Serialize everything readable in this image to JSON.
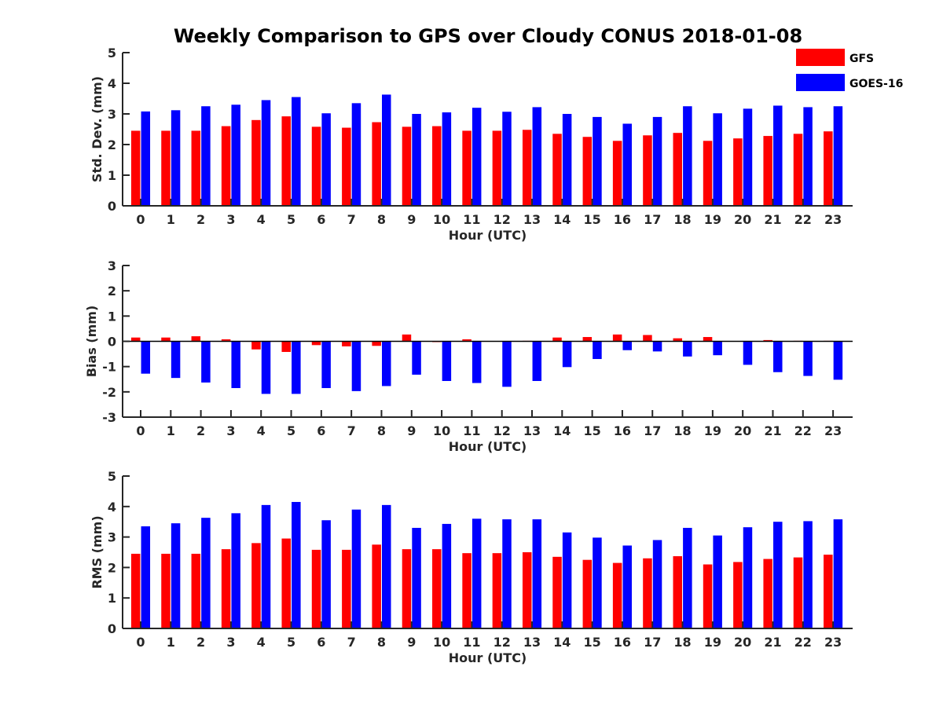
{
  "title": "Weekly Comparison to GPS over Cloudy CONUS 2018-01-08",
  "colors": {
    "GFS": "#ff0000",
    "GOES-16": "#0000ff"
  },
  "legend": {
    "placement": "top-right",
    "entries": [
      "GFS",
      "GOES-16"
    ]
  },
  "chart_data": [
    {
      "type": "bar",
      "ylabel": "Std. Dev. (mm)",
      "xlabel": "Hour (UTC)",
      "ylim": [
        0,
        5
      ],
      "yticks": [
        0,
        1,
        2,
        3,
        4,
        5
      ],
      "categories": [
        "0",
        "1",
        "2",
        "3",
        "4",
        "5",
        "6",
        "7",
        "8",
        "9",
        "10",
        "11",
        "12",
        "13",
        "14",
        "15",
        "16",
        "17",
        "18",
        "19",
        "20",
        "21",
        "22",
        "23"
      ],
      "series": [
        {
          "name": "GFS",
          "values": [
            2.45,
            2.45,
            2.45,
            2.6,
            2.8,
            2.92,
            2.58,
            2.55,
            2.73,
            2.58,
            2.6,
            2.45,
            2.45,
            2.48,
            2.35,
            2.25,
            2.12,
            2.3,
            2.38,
            2.12,
            2.2,
            2.28,
            2.35,
            2.43
          ]
        },
        {
          "name": "GOES-16",
          "values": [
            3.08,
            3.12,
            3.25,
            3.3,
            3.45,
            3.55,
            3.02,
            3.35,
            3.63,
            3.0,
            3.05,
            3.2,
            3.07,
            3.22,
            3.0,
            2.9,
            2.68,
            2.9,
            3.25,
            3.02,
            3.17,
            3.27,
            3.22,
            3.25
          ]
        }
      ]
    },
    {
      "type": "bar",
      "ylabel": "Bias (mm)",
      "xlabel": "Hour (UTC)",
      "ylim": [
        -3,
        3
      ],
      "yticks": [
        -3,
        -2,
        -1,
        0,
        1,
        2,
        3
      ],
      "categories": [
        "0",
        "1",
        "2",
        "3",
        "4",
        "5",
        "6",
        "7",
        "8",
        "9",
        "10",
        "11",
        "12",
        "13",
        "14",
        "15",
        "16",
        "17",
        "18",
        "19",
        "20",
        "21",
        "22",
        "23"
      ],
      "series": [
        {
          "name": "GFS",
          "values": [
            0.15,
            0.15,
            0.2,
            0.08,
            -0.32,
            -0.42,
            -0.15,
            -0.2,
            -0.18,
            0.27,
            -0.03,
            0.08,
            0.0,
            0.02,
            0.15,
            0.17,
            0.27,
            0.25,
            0.12,
            0.17,
            0.0,
            0.05,
            0.02,
            0.02
          ]
        },
        {
          "name": "GOES-16",
          "values": [
            -1.28,
            -1.45,
            -1.63,
            -1.85,
            -2.08,
            -2.08,
            -1.85,
            -1.97,
            -1.77,
            -1.32,
            -1.57,
            -1.65,
            -1.8,
            -1.57,
            -1.02,
            -0.7,
            -0.35,
            -0.4,
            -0.6,
            -0.55,
            -0.93,
            -1.22,
            -1.37,
            -1.52
          ]
        }
      ]
    },
    {
      "type": "bar",
      "ylabel": "RMS (mm)",
      "xlabel": "Hour (UTC)",
      "ylim": [
        0,
        5
      ],
      "yticks": [
        0,
        1,
        2,
        3,
        4,
        5
      ],
      "categories": [
        "0",
        "1",
        "2",
        "3",
        "4",
        "5",
        "6",
        "7",
        "8",
        "9",
        "10",
        "11",
        "12",
        "13",
        "14",
        "15",
        "16",
        "17",
        "18",
        "19",
        "20",
        "21",
        "22",
        "23"
      ],
      "series": [
        {
          "name": "GFS",
          "values": [
            2.45,
            2.45,
            2.45,
            2.6,
            2.8,
            2.95,
            2.58,
            2.58,
            2.75,
            2.6,
            2.6,
            2.47,
            2.47,
            2.5,
            2.35,
            2.25,
            2.15,
            2.3,
            2.37,
            2.1,
            2.18,
            2.28,
            2.33,
            2.42
          ]
        },
        {
          "name": "GOES-16",
          "values": [
            3.35,
            3.45,
            3.63,
            3.78,
            4.05,
            4.15,
            3.55,
            3.9,
            4.05,
            3.3,
            3.43,
            3.6,
            3.58,
            3.58,
            3.15,
            2.98,
            2.72,
            2.9,
            3.3,
            3.05,
            3.32,
            3.5,
            3.52,
            3.58
          ]
        }
      ]
    }
  ]
}
